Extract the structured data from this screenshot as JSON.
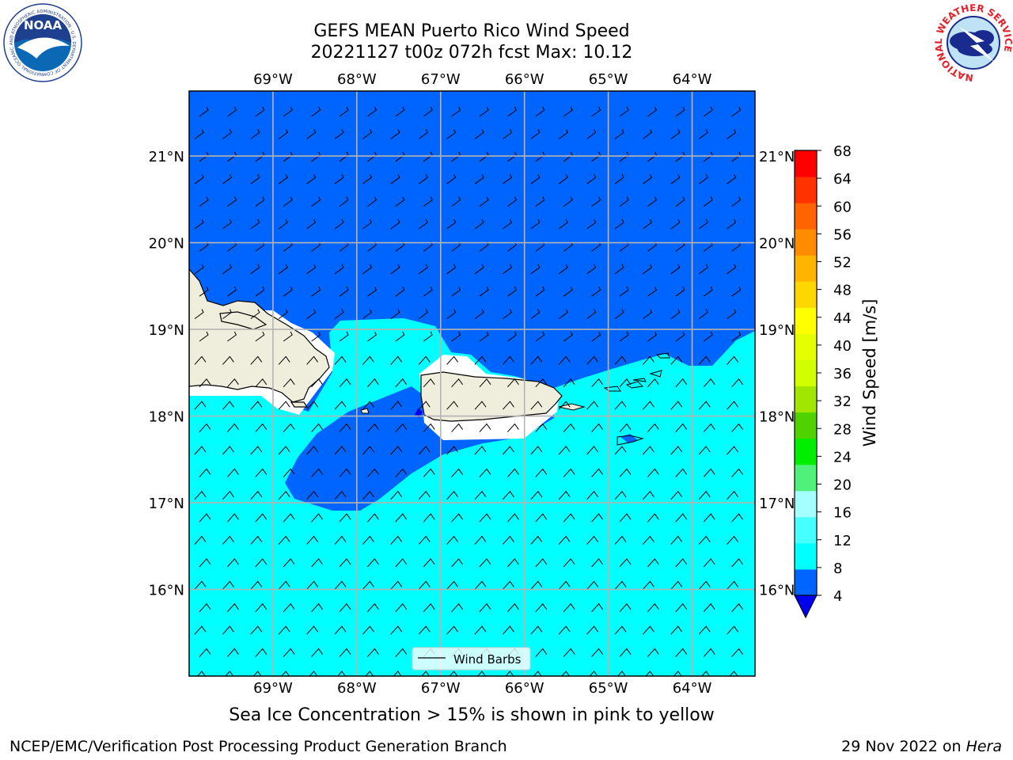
{
  "title": {
    "line1": "GEFS MEAN Puerto Rico Wind Speed",
    "line2": "20221127 t00z 072h fcst   Max: 10.12"
  },
  "map": {
    "lon_range": [
      -70.0,
      -63.25
    ],
    "lat_range": [
      15.0,
      21.75
    ],
    "lon_ticks": [
      "69°W",
      "68°W",
      "67°W",
      "66°W",
      "65°W",
      "64°W"
    ],
    "lat_ticks": [
      "21°N",
      "20°N",
      "19°N",
      "18°N",
      "17°N",
      "16°N"
    ],
    "grid": true,
    "land_color": "#efeddc",
    "coast_color": "#000000"
  },
  "legend": {
    "label": "Wind Barbs",
    "location": "lower-center"
  },
  "colorbar": {
    "label": "Wind Speed [m/s]",
    "ticks": [
      "4",
      "8",
      "12",
      "16",
      "20",
      "24",
      "28",
      "32",
      "36",
      "40",
      "44",
      "48",
      "52",
      "56",
      "60",
      "64",
      "68"
    ],
    "colors": [
      "#0064ff",
      "#00ffff",
      "#46ffff",
      "#a5ffff",
      "#50f07a",
      "#00ee00",
      "#50d200",
      "#a0e600",
      "#d2ff00",
      "#e6ff00",
      "#ffff00",
      "#ffd700",
      "#ffb400",
      "#ff8c00",
      "#ff6400",
      "#ff3200",
      "#ff0000"
    ],
    "under_color": "#0000ee"
  },
  "subtitle": "Sea Ice Concentration > 15% is shown in pink to yellow",
  "footer": {
    "left": "NCEP/EMC/Verification Post Processing Product Generation Branch",
    "right_date": "29 Nov 2022 on ",
    "right_host": "Hera"
  },
  "logos": {
    "noaa": {
      "text": "NOAA",
      "ring": "NATIONAL OCEANIC AND ATMOSPHERIC ADMINISTRATION · U.S. DEPARTMENT OF COMMERCE"
    },
    "nws": {
      "ring": "NATIONAL WEATHER SERVICE"
    }
  },
  "colors": {
    "field_low": "#0064ff",
    "field_mid": "#00ffff"
  }
}
